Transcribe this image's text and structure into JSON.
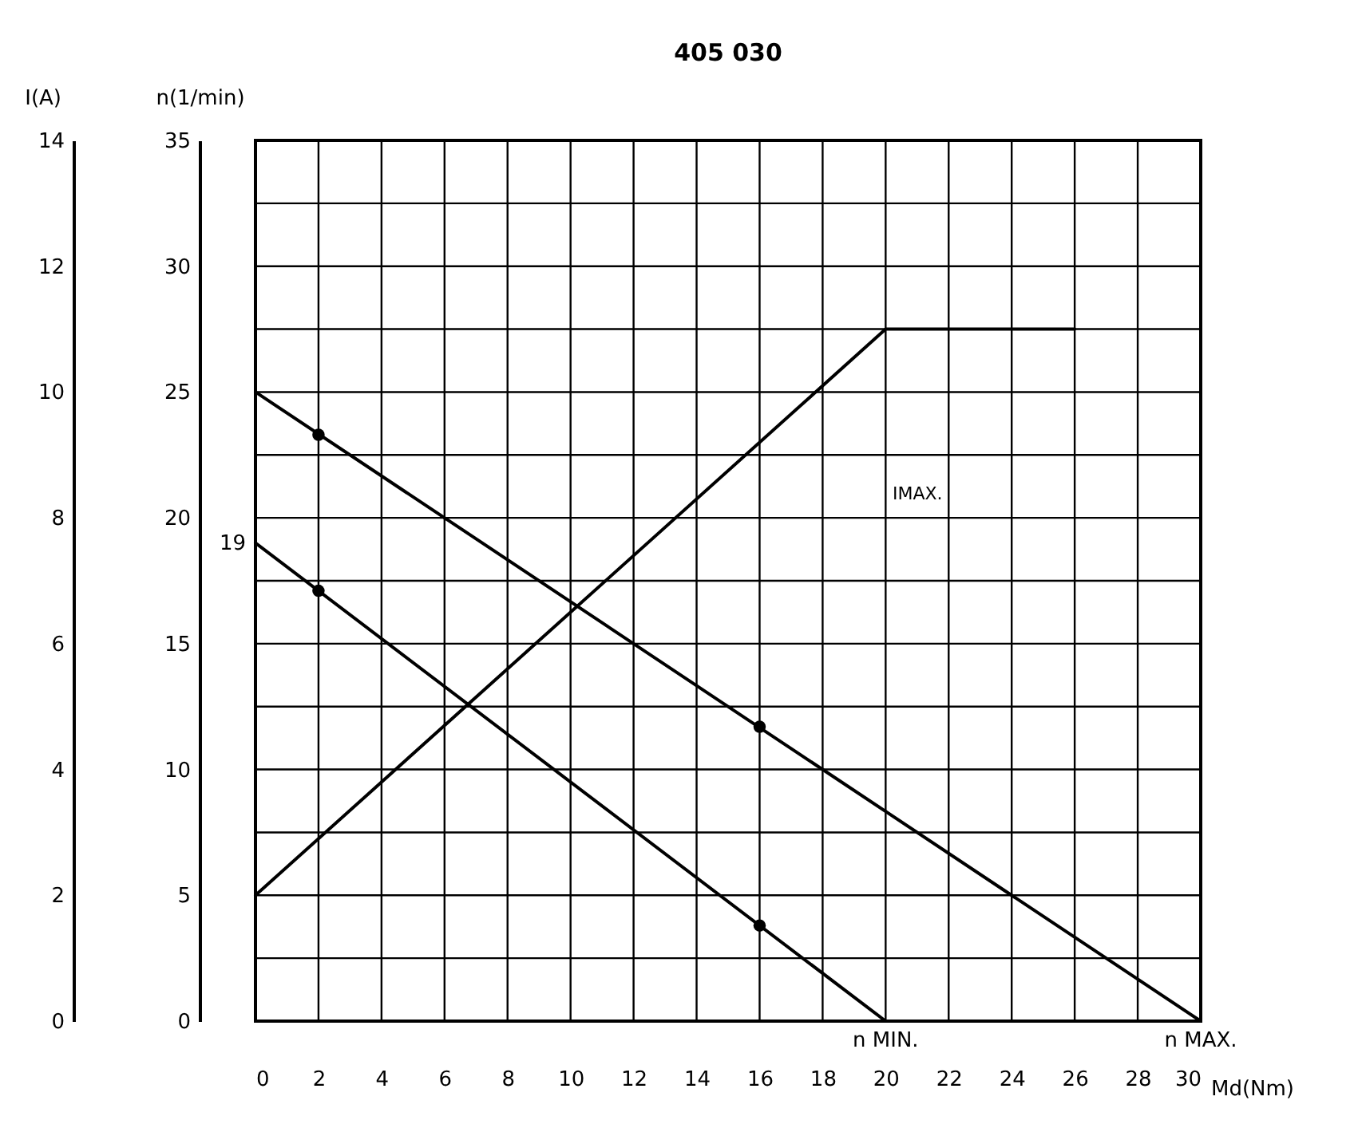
{
  "chart_data": {
    "type": "line",
    "title": "405 030",
    "xlabel": "Md(Nm)",
    "ylabel": "n(1/min)",
    "y2label": "I(A)",
    "xlim": [
      0,
      30
    ],
    "xticks": [
      0,
      2,
      4,
      6,
      8,
      10,
      12,
      14,
      16,
      18,
      20,
      22,
      24,
      26,
      28,
      30
    ],
    "ylim": [
      0,
      35
    ],
    "yticks": [
      0,
      {
        "value": 2.5,
        "label": null
      },
      5,
      {
        "value": 7.5,
        "label": null
      },
      10,
      {
        "value": 12.5,
        "label": null
      },
      15,
      {
        "value": 17.5,
        "label": null
      },
      20,
      {
        "value": 22.5,
        "label": null
      },
      25,
      {
        "value": 27.5,
        "label": null
      },
      30,
      {
        "value": 32.5,
        "label": null
      },
      35
    ],
    "y2lim": [
      0,
      14
    ],
    "y2ticks": [
      0,
      2,
      4,
      6,
      8,
      10,
      12,
      14
    ],
    "grid": true,
    "series": [
      {
        "type": "line",
        "color": "#000000",
        "x": [
          0,
          30
        ],
        "values": [
          25,
          0
        ],
        "marker": "none"
      },
      {
        "type": "line",
        "color": "#000000",
        "x": [
          0,
          20
        ],
        "values": [
          19,
          0
        ],
        "marker": "none"
      },
      {
        "type": "line",
        "color": "#000000",
        "axis": "y2",
        "x": [
          0,
          20,
          26
        ],
        "values": [
          2,
          11,
          11
        ],
        "marker": "none"
      },
      {
        "type": "scatter",
        "color": "#000000",
        "x": [
          2,
          16
        ],
        "values": [
          23.3,
          11.7
        ],
        "marker": "circle"
      },
      {
        "type": "scatter",
        "color": "#000000",
        "x": [
          2,
          16
        ],
        "values": [
          17.1,
          3.8
        ],
        "marker": "circle"
      }
    ],
    "annotations": [
      {
        "text": "19",
        "x": 0,
        "y": 19
      },
      {
        "text": "n MIN.",
        "x": 20,
        "y": 0
      },
      {
        "text": "n MAX.",
        "x": 30,
        "y": 0
      },
      "IMAX."
    ]
  }
}
